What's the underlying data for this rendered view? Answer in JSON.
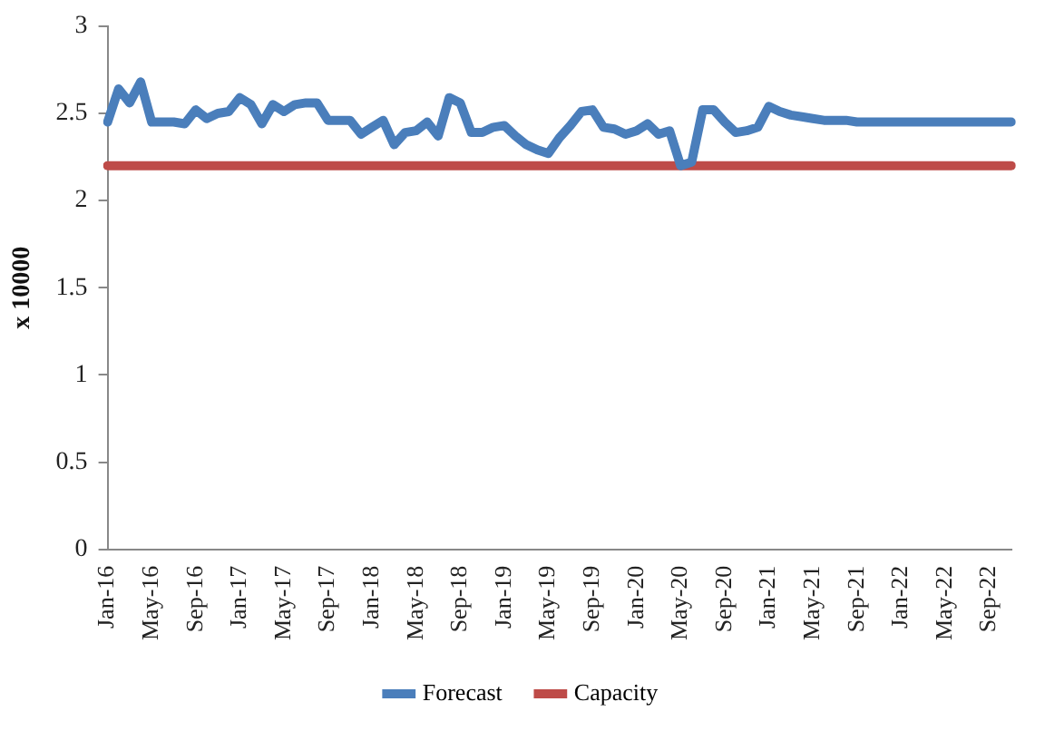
{
  "chart_data": {
    "type": "line",
    "ylabel": "x 10000",
    "categories": [
      "Jan-16",
      null,
      null,
      null,
      "May-16",
      null,
      null,
      null,
      "Sep-16",
      null,
      null,
      null,
      "Jan-17",
      null,
      null,
      null,
      "May-17",
      null,
      null,
      null,
      "Sep-17",
      null,
      null,
      null,
      "Jan-18",
      null,
      null,
      null,
      "May-18",
      null,
      null,
      null,
      "Sep-18",
      null,
      null,
      null,
      "Jan-19",
      null,
      null,
      null,
      "May-19",
      null,
      null,
      null,
      "Sep-19",
      null,
      null,
      null,
      "Jan-20",
      null,
      null,
      null,
      "May-20",
      null,
      null,
      null,
      "Sep-20",
      null,
      null,
      null,
      "Jan-21",
      null,
      null,
      null,
      "May-21",
      null,
      null,
      null,
      "Sep-21",
      null,
      null,
      null,
      "Jan-22",
      null,
      null,
      null,
      "May-22",
      null,
      null,
      null,
      "Sep-22",
      null,
      null
    ],
    "series": [
      {
        "name": "Forecast",
        "color": "#4a7ebb",
        "values": [
          2.45,
          2.64,
          2.56,
          2.68,
          2.45,
          2.45,
          2.45,
          2.44,
          2.52,
          2.47,
          2.5,
          2.51,
          2.59,
          2.55,
          2.44,
          2.55,
          2.51,
          2.55,
          2.56,
          2.56,
          2.46,
          2.46,
          2.46,
          2.38,
          2.42,
          2.46,
          2.32,
          2.39,
          2.4,
          2.45,
          2.37,
          2.59,
          2.56,
          2.39,
          2.39,
          2.42,
          2.43,
          2.37,
          2.32,
          2.29,
          2.27,
          2.36,
          2.43,
          2.51,
          2.52,
          2.42,
          2.41,
          2.38,
          2.4,
          2.44,
          2.38,
          2.4,
          2.2,
          2.22,
          2.52,
          2.52,
          2.45,
          2.39,
          2.4,
          2.42,
          2.54,
          2.51,
          2.49,
          2.48,
          2.47,
          2.46,
          2.46,
          2.46,
          2.45,
          2.45,
          2.45,
          2.45,
          2.45,
          2.45,
          2.45,
          2.45,
          2.45,
          2.45,
          2.45,
          2.45,
          2.45,
          2.45,
          2.45
        ]
      },
      {
        "name": "Capacity",
        "color": "#be4b48",
        "values": [
          2.2,
          2.2,
          2.2,
          2.2,
          2.2,
          2.2,
          2.2,
          2.2,
          2.2,
          2.2,
          2.2,
          2.2,
          2.2,
          2.2,
          2.2,
          2.2,
          2.2,
          2.2,
          2.2,
          2.2,
          2.2,
          2.2,
          2.2,
          2.2,
          2.2,
          2.2,
          2.2,
          2.2,
          2.2,
          2.2,
          2.2,
          2.2,
          2.2,
          2.2,
          2.2,
          2.2,
          2.2,
          2.2,
          2.2,
          2.2,
          2.2,
          2.2,
          2.2,
          2.2,
          2.2,
          2.2,
          2.2,
          2.2,
          2.2,
          2.2,
          2.2,
          2.2,
          2.2,
          2.2,
          2.2,
          2.2,
          2.2,
          2.2,
          2.2,
          2.2,
          2.2,
          2.2,
          2.2,
          2.2,
          2.2,
          2.2,
          2.2,
          2.2,
          2.2,
          2.2,
          2.2,
          2.2,
          2.2,
          2.2,
          2.2,
          2.2,
          2.2,
          2.2,
          2.2,
          2.2,
          2.2,
          2.2,
          2.2
        ]
      }
    ],
    "ylim": [
      0,
      3
    ],
    "yticks": [
      0,
      0.5,
      1,
      1.5,
      2,
      2.5,
      3
    ],
    "grid": false,
    "legend": "bottom",
    "marker": "none",
    "line_style": "solid"
  }
}
